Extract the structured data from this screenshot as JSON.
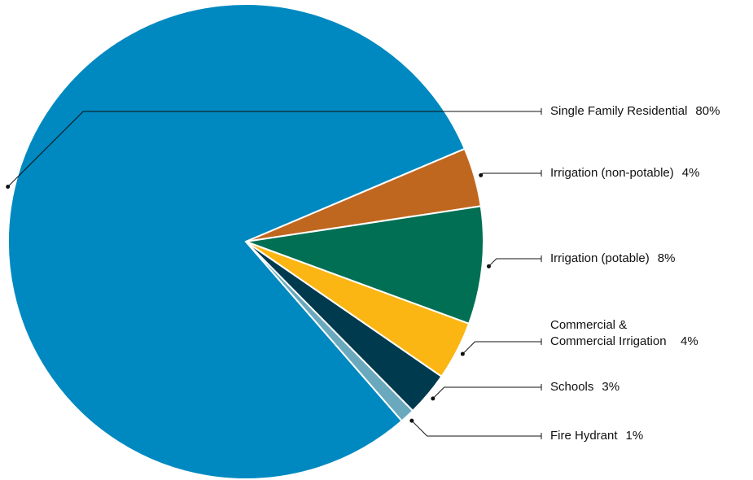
{
  "chart_data": {
    "type": "pie",
    "categories": [
      "Single Family Residential",
      "Irrigation (non-potable)",
      "Irrigation (potable)",
      "Commercial & Commercial Irrigation",
      "Schools",
      "Fire Hydrant"
    ],
    "values": [
      80,
      4,
      8,
      4,
      3,
      1
    ],
    "value_labels": [
      "80%",
      "4%",
      "8%",
      "4%",
      "3%",
      "1%"
    ],
    "colors": [
      "#0089c0",
      "#c0671f",
      "#006f53",
      "#fbb614",
      "#003a4f",
      "#6aa9bd"
    ]
  }
}
